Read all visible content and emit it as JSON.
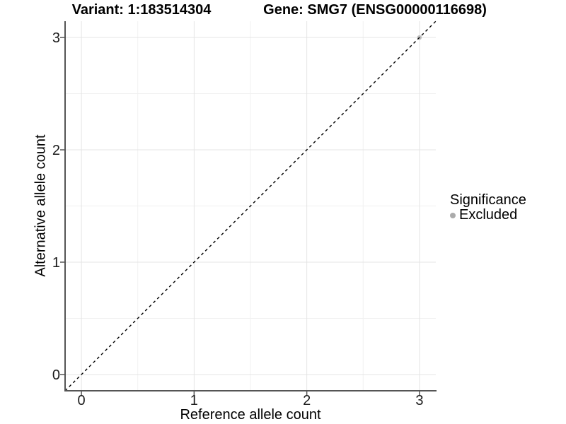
{
  "titles": {
    "variant": "Variant: 1:183514304",
    "gene": "Gene: SMG7 (ENSG00000116698)"
  },
  "legend": {
    "title": "Significance",
    "items": [
      {
        "label": "Excluded",
        "color": "#ababab"
      }
    ],
    "position": "right"
  },
  "chart_data": {
    "type": "scatter",
    "title": "Variant: 1:183514304   Gene: SMG7 (ENSG00000116698)",
    "xlabel": "Reference allele count",
    "ylabel": "Alternative allele count",
    "xlim": [
      -0.145,
      3.145
    ],
    "ylim": [
      -0.145,
      3.145
    ],
    "x_ticks": [
      0,
      1,
      2,
      3
    ],
    "y_ticks": [
      0,
      1,
      2,
      3
    ],
    "x_minor_ticks": [
      0.5,
      1.5,
      2.5
    ],
    "y_minor_ticks": [
      0.5,
      1.5,
      2.5
    ],
    "grid": true,
    "legend_position": "right",
    "series": [
      {
        "name": "Excluded",
        "color": "#bdbdbd",
        "points": [
          {
            "x": 3,
            "y": 3
          }
        ]
      }
    ],
    "identity_line": {
      "style": "dashed",
      "color": "#000000",
      "from": [
        -0.145,
        -0.145
      ],
      "to": [
        3.145,
        3.145
      ]
    }
  },
  "colors": {
    "background": "#ffffff",
    "grid_major": "#e4e4e4",
    "grid_minor": "#f0f0f0",
    "axis_line": "#555555",
    "tick_text": "#1a1a1a",
    "dashed_line": "#000000",
    "point": "#bdbdbd"
  }
}
